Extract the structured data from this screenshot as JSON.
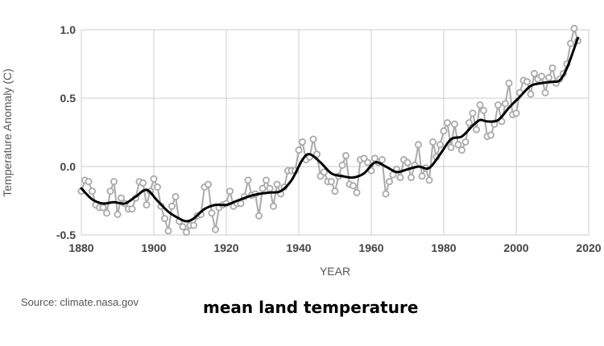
{
  "source_text": "Source: climate.nasa.gov",
  "caption": "mean land temperature",
  "chart_data": {
    "type": "line",
    "title": "",
    "xlabel": "YEAR",
    "ylabel": "Temperature Anomaly (C)",
    "xlim": [
      1880,
      2020
    ],
    "ylim": [
      -0.5,
      1.0
    ],
    "x_ticks": [
      "1880",
      "1900",
      "1920",
      "1940",
      "1960",
      "1980",
      "2000",
      "2020"
    ],
    "y_ticks": [
      "1.0",
      "0.5",
      "0.0",
      "-0.5"
    ],
    "grid": true,
    "legend": "none",
    "colors": {
      "annual": "#aaaaaa",
      "smoothed": "#000000",
      "grid": "#cccccc"
    },
    "series": [
      {
        "key": "annual",
        "x": [
          1880,
          1881,
          1882,
          1883,
          1884,
          1885,
          1886,
          1887,
          1888,
          1889,
          1890,
          1891,
          1892,
          1893,
          1894,
          1895,
          1896,
          1897,
          1898,
          1899,
          1900,
          1901,
          1902,
          1903,
          1904,
          1905,
          1906,
          1907,
          1908,
          1909,
          1910,
          1911,
          1912,
          1913,
          1914,
          1915,
          1916,
          1917,
          1918,
          1919,
          1920,
          1921,
          1922,
          1923,
          1924,
          1925,
          1926,
          1927,
          1928,
          1929,
          1930,
          1931,
          1932,
          1933,
          1934,
          1935,
          1936,
          1937,
          1938,
          1939,
          1940,
          1941,
          1942,
          1943,
          1944,
          1945,
          1946,
          1947,
          1948,
          1949,
          1950,
          1951,
          1952,
          1953,
          1954,
          1955,
          1956,
          1957,
          1958,
          1959,
          1960,
          1961,
          1962,
          1963,
          1964,
          1965,
          1966,
          1967,
          1968,
          1969,
          1970,
          1971,
          1972,
          1973,
          1974,
          1975,
          1976,
          1977,
          1978,
          1979,
          1980,
          1981,
          1982,
          1983,
          1984,
          1985,
          1986,
          1987,
          1988,
          1989,
          1990,
          1991,
          1992,
          1993,
          1994,
          1995,
          1996,
          1997,
          1998,
          1999,
          2000,
          2001,
          2002,
          2003,
          2004,
          2005,
          2006,
          2007,
          2008,
          2009,
          2010,
          2011,
          2012,
          2013,
          2014,
          2015,
          2016,
          2017
        ],
        "values": [
          -0.18,
          -0.1,
          -0.11,
          -0.18,
          -0.28,
          -0.3,
          -0.3,
          -0.34,
          -0.18,
          -0.11,
          -0.35,
          -0.23,
          -0.27,
          -0.31,
          -0.31,
          -0.23,
          -0.11,
          -0.12,
          -0.28,
          -0.18,
          -0.09,
          -0.15,
          -0.29,
          -0.38,
          -0.47,
          -0.29,
          -0.22,
          -0.4,
          -0.44,
          -0.48,
          -0.43,
          -0.43,
          -0.36,
          -0.35,
          -0.15,
          -0.13,
          -0.34,
          -0.46,
          -0.3,
          -0.28,
          -0.27,
          -0.18,
          -0.29,
          -0.27,
          -0.27,
          -0.22,
          -0.1,
          -0.21,
          -0.2,
          -0.36,
          -0.16,
          -0.1,
          -0.16,
          -0.29,
          -0.13,
          -0.2,
          -0.15,
          -0.03,
          -0.03,
          -0.03,
          0.12,
          0.18,
          0.05,
          0.07,
          0.2,
          0.09,
          -0.07,
          -0.04,
          -0.11,
          -0.11,
          -0.18,
          -0.07,
          0.01,
          0.08,
          -0.13,
          -0.14,
          -0.19,
          0.05,
          0.06,
          0.03,
          -0.03,
          0.06,
          0.03,
          0.05,
          -0.2,
          -0.11,
          -0.06,
          -0.02,
          -0.08,
          0.05,
          0.03,
          -0.08,
          0.01,
          0.16,
          -0.07,
          -0.01,
          -0.1,
          0.18,
          0.07,
          0.16,
          0.26,
          0.32,
          0.14,
          0.31,
          0.16,
          0.12,
          0.18,
          0.32,
          0.39,
          0.27,
          0.45,
          0.41,
          0.22,
          0.23,
          0.31,
          0.45,
          0.33,
          0.46,
          0.61,
          0.38,
          0.39,
          0.54,
          0.63,
          0.62,
          0.53,
          0.68,
          0.64,
          0.66,
          0.54,
          0.65,
          0.72,
          0.61,
          0.64,
          0.68,
          0.75,
          0.9,
          1.01,
          0.92
        ]
      },
      {
        "key": "smoothed",
        "x": [
          1880,
          1883,
          1886,
          1889,
          1892,
          1895,
          1898,
          1901,
          1904,
          1907,
          1909,
          1911,
          1914,
          1917,
          1920,
          1923,
          1926,
          1929,
          1932,
          1935,
          1938,
          1941,
          1943,
          1946,
          1949,
          1952,
          1955,
          1958,
          1961,
          1964,
          1967,
          1970,
          1973,
          1976,
          1979,
          1982,
          1985,
          1988,
          1990,
          1992,
          1995,
          1998,
          2001,
          2004,
          2007,
          2010,
          2012,
          2014,
          2017
        ],
        "values": [
          -0.16,
          -0.24,
          -0.27,
          -0.26,
          -0.27,
          -0.22,
          -0.17,
          -0.25,
          -0.33,
          -0.38,
          -0.4,
          -0.38,
          -0.31,
          -0.28,
          -0.28,
          -0.25,
          -0.22,
          -0.2,
          -0.19,
          -0.18,
          -0.1,
          0.05,
          0.09,
          0.03,
          -0.05,
          -0.07,
          -0.08,
          -0.05,
          0.03,
          0.0,
          -0.04,
          -0.02,
          0.0,
          -0.01,
          0.09,
          0.2,
          0.22,
          0.3,
          0.34,
          0.33,
          0.34,
          0.43,
          0.51,
          0.59,
          0.61,
          0.62,
          0.63,
          0.72,
          0.94
        ]
      }
    ]
  }
}
